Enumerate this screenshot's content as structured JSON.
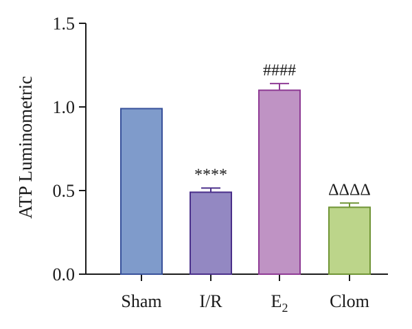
{
  "chart_data": {
    "type": "bar",
    "ylabel": "ATP Luminometric",
    "ylim": [
      0,
      1.5
    ],
    "yticks": [
      0.0,
      0.5,
      1.0,
      1.5
    ],
    "ytick_labels": [
      "0.0",
      "0.5",
      "1.0",
      "1.5"
    ],
    "categories": [
      "Sham",
      "I/R",
      "E2",
      "Clom"
    ],
    "category_labels": [
      {
        "text": "Sham",
        "sub": ""
      },
      {
        "text": "I/R",
        "sub": ""
      },
      {
        "text": "E",
        "sub": "2"
      },
      {
        "text": "Clom",
        "sub": ""
      }
    ],
    "values": [
      0.99,
      0.49,
      1.1,
      0.4
    ],
    "errors": [
      0,
      0.025,
      0.04,
      0.025
    ],
    "annotations": [
      "",
      "****",
      "####",
      "ΔΔΔΔ"
    ],
    "colors": {
      "fill": [
        "#7f9bcb",
        "#9388c2",
        "#bf93c4",
        "#bcd58a"
      ],
      "edge": [
        "#37509a",
        "#4a2f8a",
        "#8e3a94",
        "#6f9435"
      ]
    },
    "grid": false,
    "legend": "none"
  }
}
